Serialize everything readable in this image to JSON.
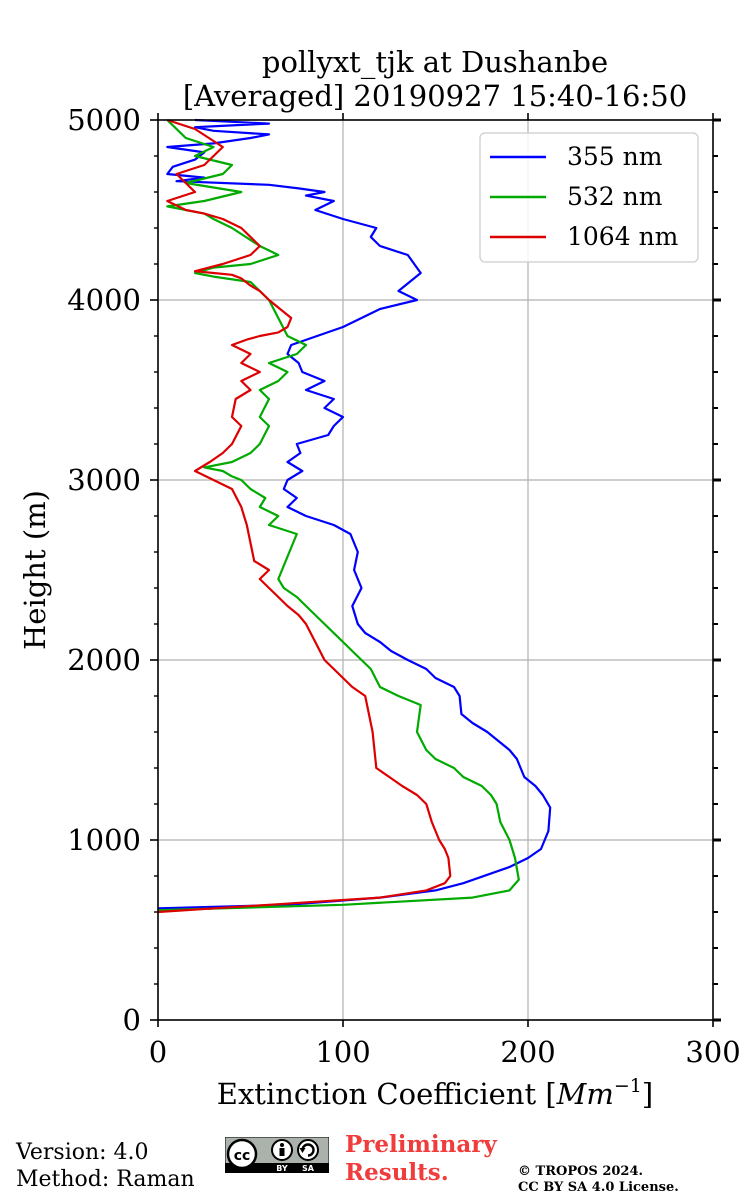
{
  "chart_data": {
    "type": "line",
    "title_lines": [
      "pollyxt_tjk at Dushanbe",
      "[Averaged] 20190927 15:40-16:50"
    ],
    "xlabel": "Extinction Coefficient [",
    "xlabel_unit": "Mm",
    "xlabel_exp": "−1",
    "xlabel_close": "]",
    "ylabel": "Height (m)",
    "xlim": [
      0,
      300
    ],
    "ylim": [
      0,
      5000
    ],
    "xticks": [
      0,
      100,
      200,
      300
    ],
    "xtick_labels": [
      "0",
      "100",
      "200",
      "300"
    ],
    "yticks": [
      0,
      1000,
      2000,
      3000,
      4000,
      5000
    ],
    "ytick_labels": [
      "0",
      "1000",
      "2000",
      "3000",
      "4000",
      "5000"
    ],
    "grid": true,
    "legend_position": "top-right",
    "series": [
      {
        "name": "355 nm",
        "color": "#0000ff",
        "x": [
          0,
          70,
          120,
          150,
          165,
          190,
          200,
          207,
          211,
          212,
          208,
          204,
          198,
          196,
          194,
          190,
          184,
          178,
          170,
          164,
          163,
          160,
          150,
          145,
          135,
          126,
          120,
          112,
          108,
          105,
          110,
          106,
          108,
          104,
          95,
          80,
          70,
          75,
          68,
          70,
          78,
          70,
          77,
          75,
          92,
          95,
          100,
          90,
          95,
          80,
          90,
          78,
          76,
          70,
          72,
          100,
          120,
          140,
          130,
          142,
          135,
          120,
          115,
          118,
          100,
          85,
          95,
          80,
          90,
          76,
          60,
          10,
          25,
          5,
          8,
          20,
          25,
          5,
          30,
          50,
          60,
          30,
          20,
          40,
          60,
          40,
          20
        ],
        "y": [
          620,
          640,
          680,
          720,
          760,
          850,
          900,
          950,
          1050,
          1180,
          1250,
          1300,
          1350,
          1400,
          1450,
          1500,
          1550,
          1600,
          1650,
          1700,
          1800,
          1850,
          1900,
          1950,
          2000,
          2050,
          2100,
          2150,
          2200,
          2300,
          2400,
          2500,
          2600,
          2700,
          2750,
          2800,
          2850,
          2900,
          2950,
          3000,
          3050,
          3100,
          3150,
          3200,
          3250,
          3300,
          3350,
          3400,
          3450,
          3500,
          3550,
          3600,
          3650,
          3700,
          3750,
          3850,
          3950,
          4000,
          4050,
          4150,
          4250,
          4300,
          4350,
          4400,
          4450,
          4500,
          4550,
          4580,
          4600,
          4620,
          4640,
          4660,
          4680,
          4700,
          4740,
          4780,
          4820,
          4850,
          4870,
          4900,
          4920,
          4940,
          4960,
          4970,
          4980,
          4990,
          5000
        ]
      },
      {
        "name": "532 nm",
        "color": "#00aa00",
        "x": [
          0,
          100,
          170,
          190,
          195,
          193,
          190,
          185,
          183,
          180,
          175,
          165,
          160,
          150,
          145,
          140,
          142,
          130,
          120,
          115,
          110,
          100,
          90,
          80,
          75,
          68,
          65,
          75,
          60,
          65,
          55,
          58,
          50,
          45,
          40,
          35,
          25,
          40,
          50,
          55,
          60,
          55,
          60,
          55,
          65,
          70,
          60,
          75,
          80,
          70,
          65,
          60,
          55,
          50,
          30,
          20,
          30,
          50,
          65,
          55,
          40,
          30,
          25,
          15,
          5,
          25,
          45,
          15,
          35,
          40,
          20,
          30,
          15,
          5
        ],
        "y": [
          610,
          640,
          680,
          720,
          780,
          900,
          1000,
          1100,
          1200,
          1250,
          1300,
          1350,
          1400,
          1450,
          1500,
          1600,
          1750,
          1800,
          1850,
          1950,
          2000,
          2100,
          2200,
          2300,
          2350,
          2400,
          2450,
          2700,
          2750,
          2800,
          2850,
          2900,
          2950,
          3000,
          3020,
          3050,
          3070,
          3100,
          3150,
          3200,
          3300,
          3350,
          3450,
          3500,
          3550,
          3600,
          3650,
          3700,
          3750,
          3800,
          3900,
          4000,
          4050,
          4100,
          4130,
          4150,
          4180,
          4200,
          4250,
          4300,
          4400,
          4450,
          4480,
          4500,
          4520,
          4550,
          4600,
          4650,
          4700,
          4750,
          4800,
          4850,
          4900,
          5000
        ]
      },
      {
        "name": "1064 nm",
        "color": "#dd0000",
        "x": [
          0,
          60,
          120,
          145,
          155,
          158,
          157,
          155,
          152,
          150,
          148,
          145,
          140,
          132,
          125,
          118,
          116,
          112,
          105,
          100,
          95,
          90,
          85,
          80,
          76,
          70,
          65,
          60,
          55,
          60,
          52,
          50,
          48,
          45,
          40,
          30,
          20,
          28,
          35,
          40,
          45,
          40,
          42,
          50,
          45,
          55,
          45,
          50,
          40,
          48,
          55,
          65,
          70,
          72,
          60,
          55,
          50,
          45,
          40,
          30,
          20,
          35,
          50,
          55,
          45,
          35,
          25,
          15,
          5,
          20,
          10,
          25,
          35,
          20,
          5
        ],
        "y": [
          600,
          640,
          680,
          720,
          760,
          800,
          900,
          950,
          1000,
          1050,
          1100,
          1200,
          1250,
          1300,
          1350,
          1400,
          1600,
          1800,
          1850,
          1900,
          1950,
          2000,
          2100,
          2200,
          2250,
          2300,
          2350,
          2400,
          2450,
          2500,
          2550,
          2650,
          2750,
          2850,
          2950,
          3000,
          3050,
          3100,
          3150,
          3200,
          3300,
          3350,
          3450,
          3500,
          3550,
          3600,
          3650,
          3700,
          3750,
          3780,
          3800,
          3820,
          3850,
          3900,
          4000,
          4050,
          4080,
          4120,
          4140,
          4150,
          4160,
          4200,
          4250,
          4300,
          4400,
          4450,
          4480,
          4500,
          4550,
          4600,
          4700,
          4750,
          4850,
          4950,
          5000
        ]
      }
    ]
  },
  "footer": {
    "version": "Version: 4.0",
    "method": "Method: Raman",
    "preliminary_line1": "Preliminary",
    "preliminary_line2": "Results.",
    "copyright_line1": "© TROPOS 2024.",
    "copyright_line2": "CC BY SA 4.0 License.",
    "license_badge": [
      "cc",
      "BY",
      "SA"
    ]
  }
}
